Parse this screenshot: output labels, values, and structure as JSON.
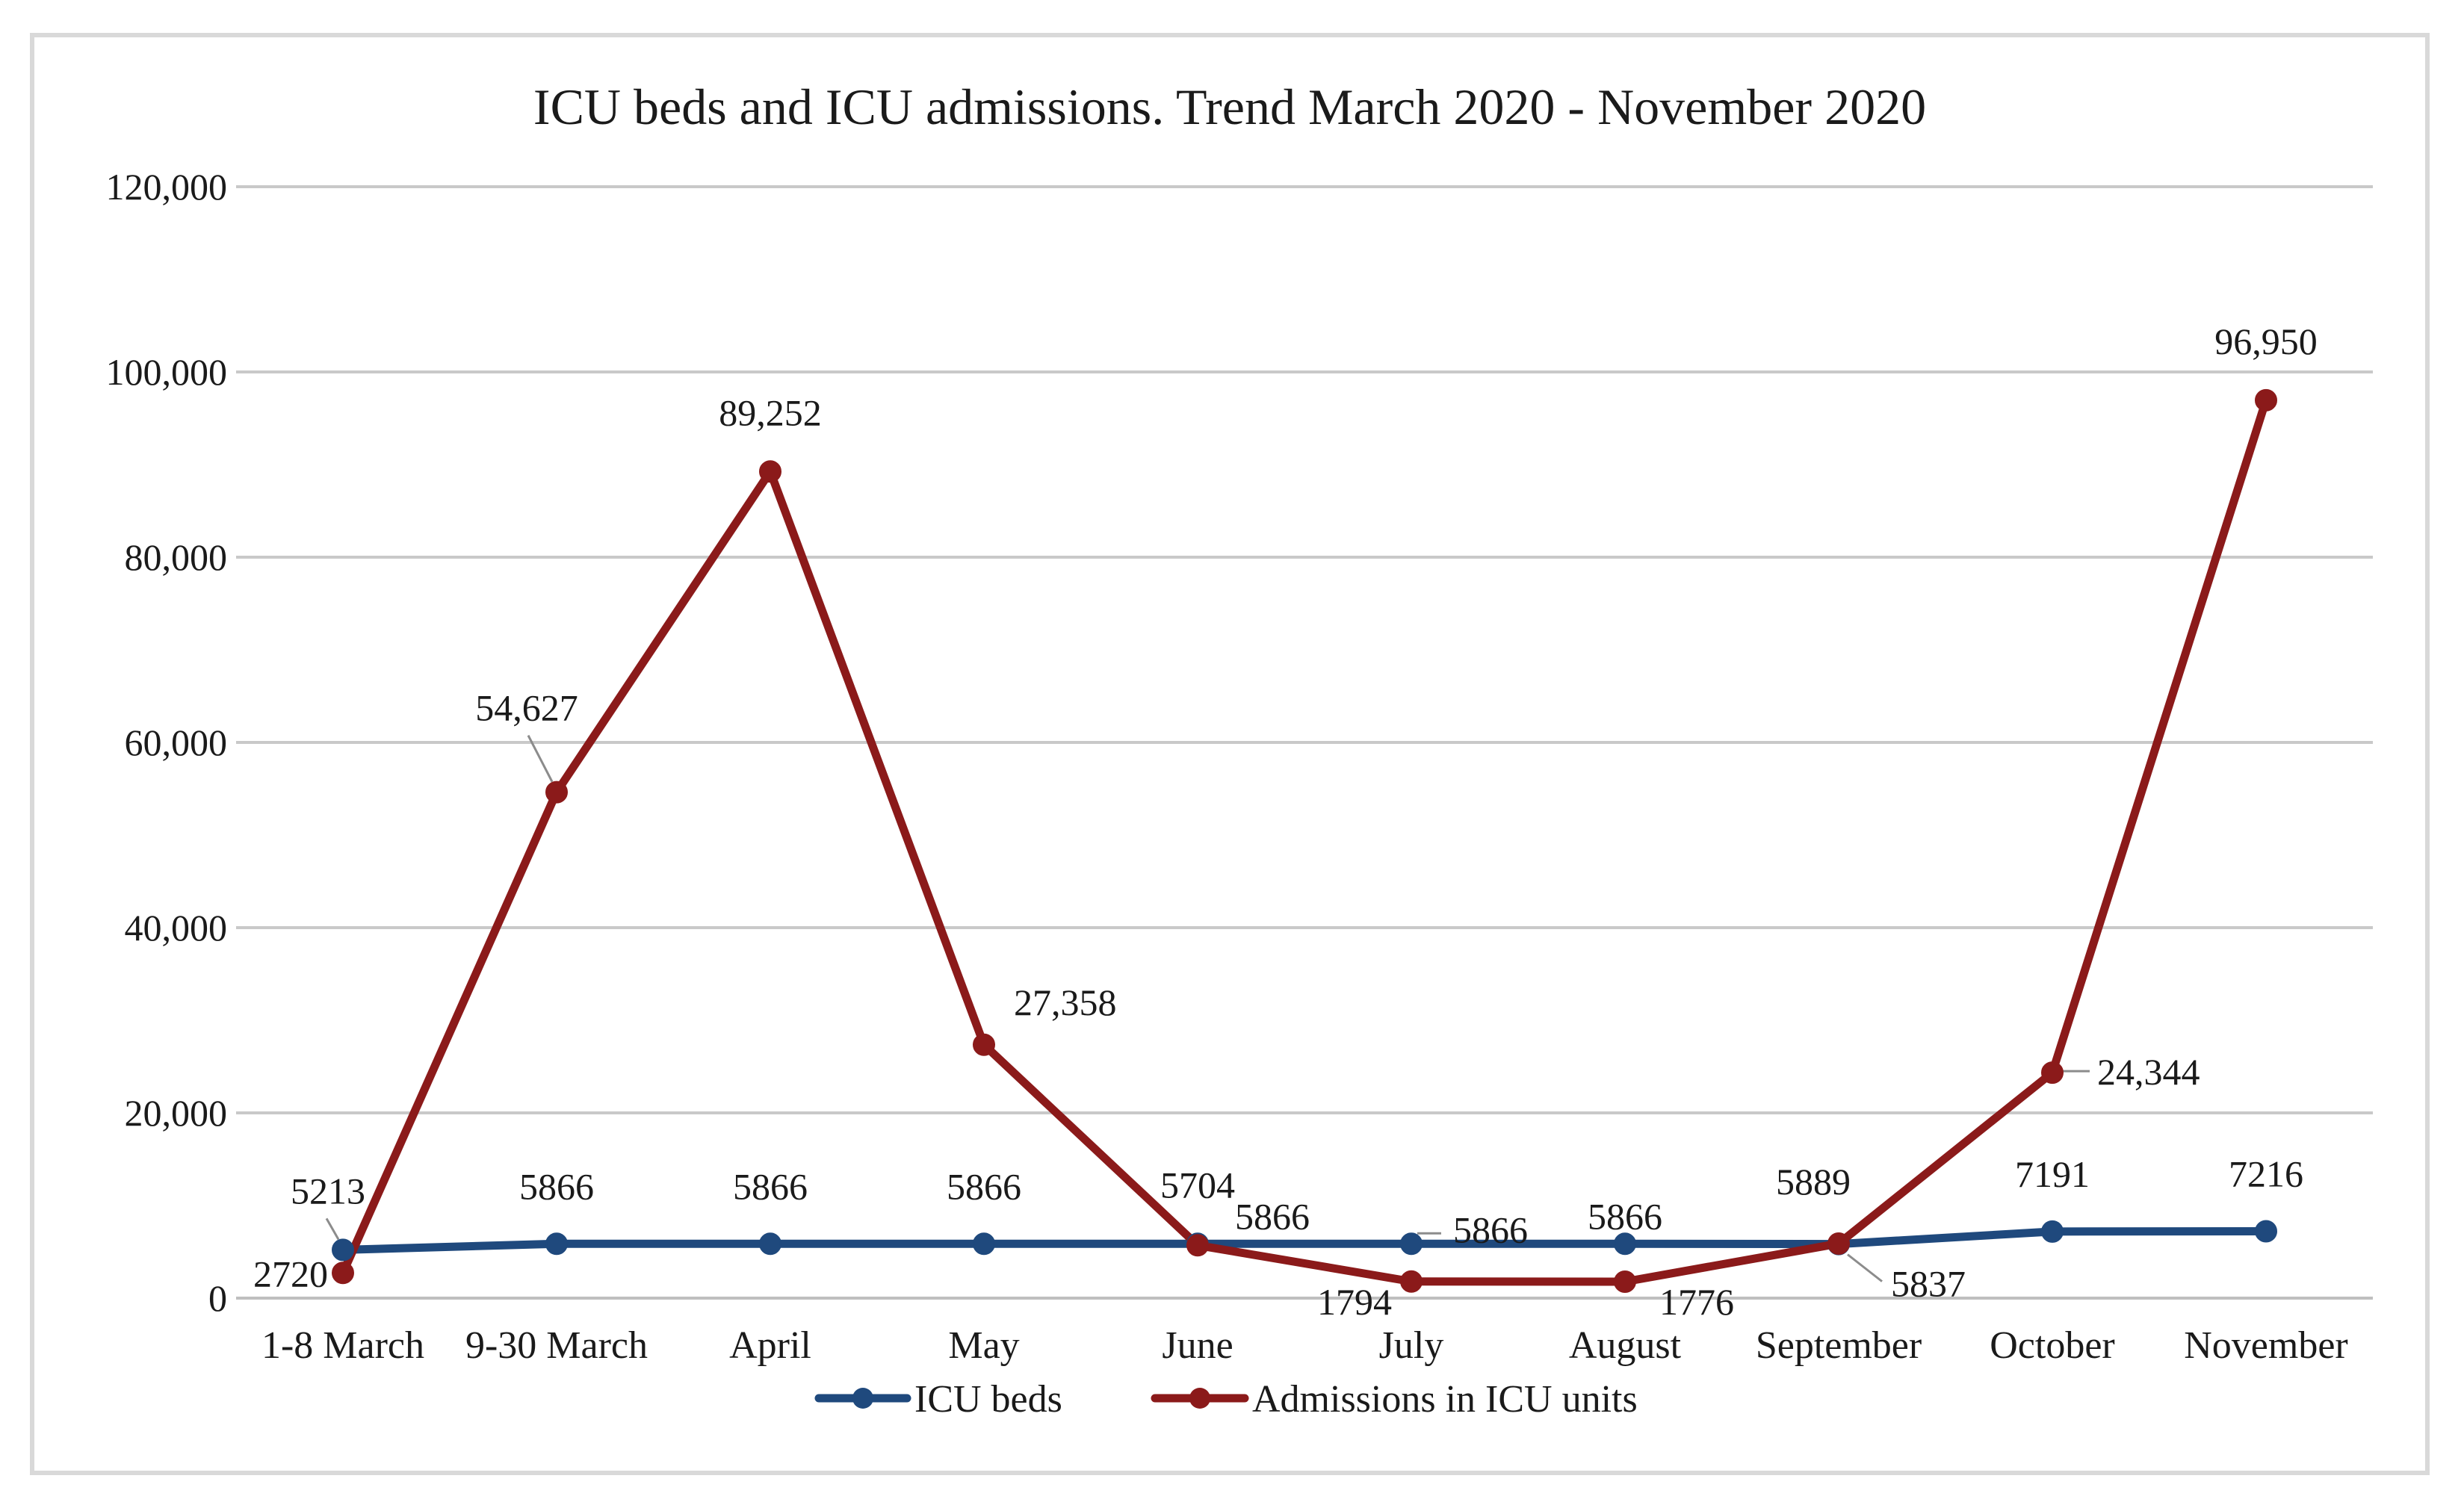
{
  "chart_data": {
    "type": "line",
    "title": "ICU beds and ICU admissions. Trend March 2020 - November 2020",
    "xlabel": "",
    "ylabel": "",
    "categories": [
      "1-8 March",
      "9-30 March",
      "April",
      "May",
      "June",
      "July",
      "August",
      "September",
      "October",
      "November"
    ],
    "ylim": [
      0,
      120000
    ],
    "yticks": [
      0,
      20000,
      40000,
      60000,
      80000,
      100000,
      120000
    ],
    "ytick_labels": [
      "0",
      "20,000",
      "40,000",
      "60,000",
      "80,000",
      "100,000",
      "120,000"
    ],
    "grid": true,
    "legend_position": "bottom",
    "series": [
      {
        "name": "ICU beds",
        "color": "#1f497d",
        "values": [
          5213,
          5866,
          5866,
          5866,
          5866,
          5866,
          5866,
          5837,
          7191,
          7216
        ],
        "labels": [
          "5213",
          "5866",
          "5866",
          "5866",
          "5866",
          "5866",
          "5866",
          "5837",
          "7191",
          "7216"
        ]
      },
      {
        "name": "Admissions in ICU units",
        "color": "#8b1a1a",
        "values": [
          2720,
          54627,
          89252,
          27358,
          5704,
          1794,
          1776,
          5889,
          24344,
          96950
        ],
        "labels": [
          "2720",
          "54,627",
          "89,252",
          "27,358",
          "5704",
          "1794",
          "1776",
          "5889",
          "24,344",
          "96,950"
        ]
      }
    ]
  }
}
